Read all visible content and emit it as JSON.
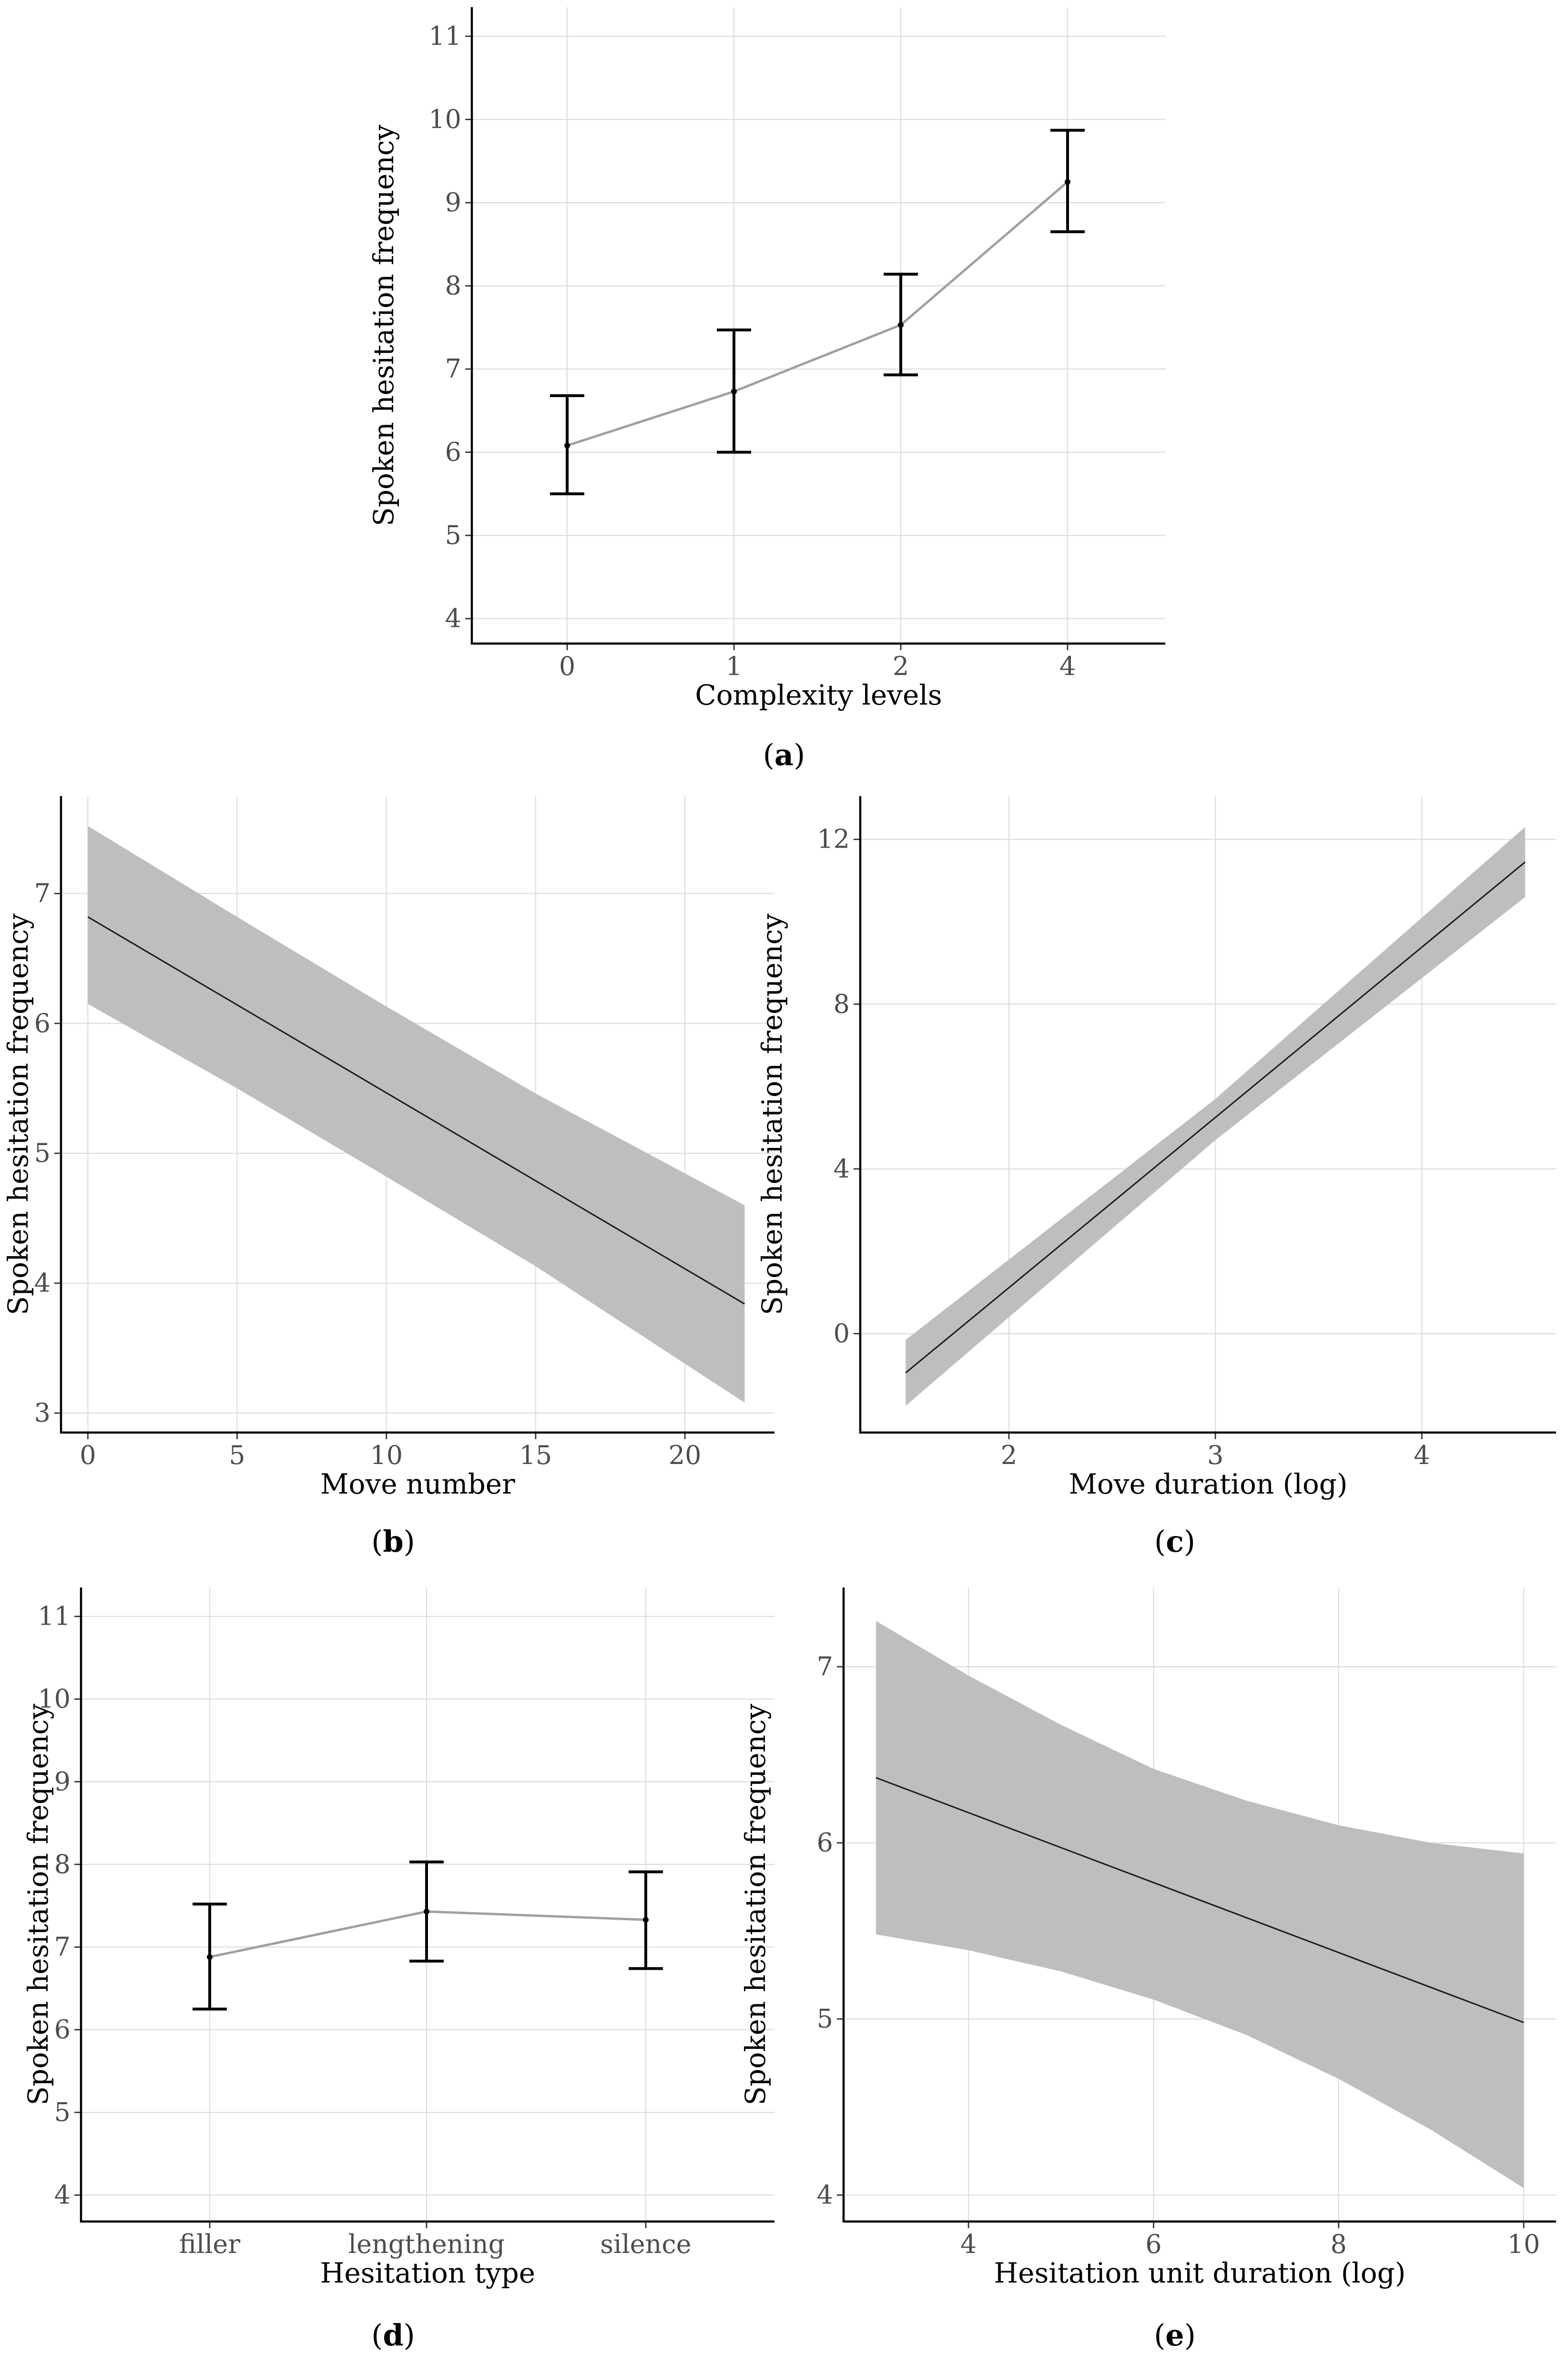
{
  "colors": {
    "band": "#bebebe",
    "line_grey": "#a0a0a0",
    "line_dark": "#1a1a1a",
    "error_bar": "#000000"
  },
  "chart_data": [
    {
      "id": "a",
      "type": "line",
      "subtype": "errorbar",
      "caption": "a",
      "xlabel": "Complexity levels",
      "ylabel": "Spoken hesitation frequency",
      "categories": [
        "0",
        "1",
        "2",
        "4"
      ],
      "values": [
        6.08,
        6.73,
        7.53,
        9.25
      ],
      "lower": [
        5.5,
        6.0,
        6.93,
        8.65
      ],
      "upper": [
        6.68,
        7.47,
        8.14,
        9.87
      ],
      "ylim": [
        3.7,
        11.35
      ],
      "yticks": [
        4,
        5,
        6,
        7,
        8,
        9,
        10,
        11
      ]
    },
    {
      "id": "b",
      "type": "line",
      "subtype": "ribbon",
      "caption": "b",
      "xlabel": "Move number",
      "ylabel": "Spoken hesitation frequency",
      "x": [
        0,
        22
      ],
      "y": [
        6.82,
        3.84
      ],
      "band_x": [
        0,
        5,
        10,
        15,
        22
      ],
      "band_upper": [
        7.52,
        6.82,
        6.13,
        5.46,
        4.6
      ],
      "band_lower": [
        6.15,
        5.5,
        4.82,
        4.13,
        3.08
      ],
      "xlim": [
        -0.9,
        23.0
      ],
      "ylim": [
        2.85,
        7.75
      ],
      "xticks": [
        0,
        5,
        10,
        15,
        20
      ],
      "yticks": [
        3,
        4,
        5,
        6,
        7
      ]
    },
    {
      "id": "c",
      "type": "line",
      "subtype": "ribbon",
      "caption": "c",
      "xlabel": "Move duration (log)",
      "ylabel": "Spoken hesitation frequency",
      "x": [
        1.5,
        4.5
      ],
      "y": [
        -0.95,
        11.45
      ],
      "band_x": [
        1.5,
        3.0,
        4.5
      ],
      "band_upper": [
        -0.15,
        5.7,
        12.3
      ],
      "band_lower": [
        -1.75,
        4.7,
        10.6
      ],
      "xlim": [
        1.28,
        4.65
      ],
      "ylim": [
        -2.4,
        13.05
      ],
      "xticks": [
        2,
        3,
        4
      ],
      "yticks": [
        0,
        4,
        8,
        12
      ]
    },
    {
      "id": "d",
      "type": "line",
      "subtype": "errorbar",
      "caption": "d",
      "xlabel": "Hesitation type",
      "ylabel": "Spoken hesitation frequency",
      "categories": [
        "filler",
        "lengthening",
        "silence"
      ],
      "values": [
        6.88,
        7.43,
        7.33
      ],
      "lower": [
        6.25,
        6.83,
        6.74
      ],
      "upper": [
        7.52,
        8.03,
        7.91
      ],
      "ylim": [
        3.68,
        11.35
      ],
      "yticks": [
        4,
        5,
        6,
        7,
        8,
        9,
        10,
        11
      ]
    },
    {
      "id": "e",
      "type": "line",
      "subtype": "ribbon",
      "caption": "e",
      "xlabel": "Hesitation unit duration (log)",
      "ylabel": "Spoken hesitation frequency",
      "x": [
        3,
        10
      ],
      "y": [
        6.37,
        4.98
      ],
      "band_x": [
        3,
        4,
        5,
        6,
        7,
        8,
        9,
        10
      ],
      "band_upper": [
        7.26,
        6.95,
        6.67,
        6.42,
        6.24,
        6.1,
        6.0,
        5.94
      ],
      "band_lower": [
        5.48,
        5.39,
        5.27,
        5.11,
        4.91,
        4.66,
        4.37,
        4.04
      ],
      "xlim": [
        2.65,
        10.35
      ],
      "ylim": [
        3.85,
        7.45
      ],
      "xticks": [
        4,
        6,
        8,
        10
      ],
      "yticks": [
        4,
        5,
        6,
        7
      ]
    }
  ]
}
